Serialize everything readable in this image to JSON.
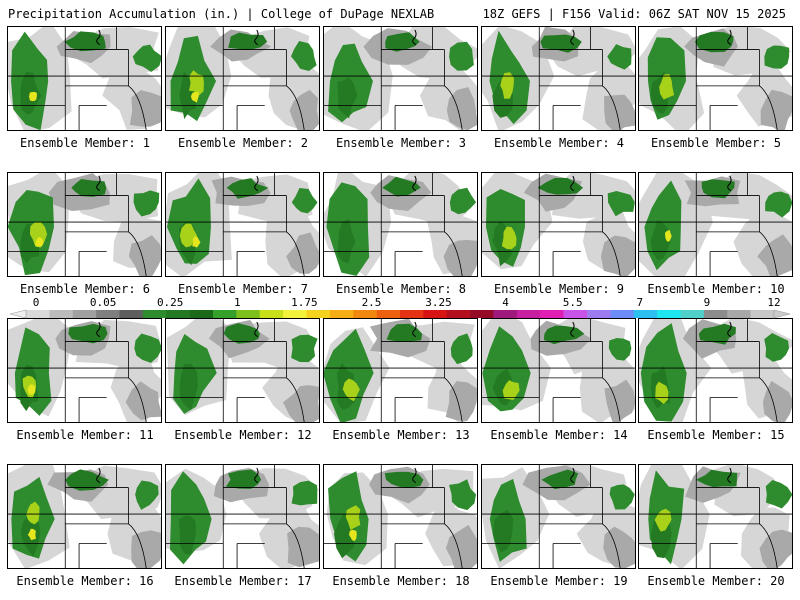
{
  "header": {
    "title_left": "Precipitation Accumulation (in.) | College of DuPage NEXLAB",
    "title_right": "18Z GEFS | F156 Valid: 06Z SAT NOV 15 2025"
  },
  "panels": [
    {
      "label": "Ensemble Member: 1"
    },
    {
      "label": "Ensemble Member: 2"
    },
    {
      "label": "Ensemble Member: 3"
    },
    {
      "label": "Ensemble Member: 4"
    },
    {
      "label": "Ensemble Member: 5"
    },
    {
      "label": "Ensemble Member: 6"
    },
    {
      "label": "Ensemble Member: 7"
    },
    {
      "label": "Ensemble Member: 8"
    },
    {
      "label": "Ensemble Member: 9"
    },
    {
      "label": "Ensemble Member: 10"
    },
    {
      "label": "Ensemble Member: 11"
    },
    {
      "label": "Ensemble Member: 12"
    },
    {
      "label": "Ensemble Member: 13"
    },
    {
      "label": "Ensemble Member: 14"
    },
    {
      "label": "Ensemble Member: 15"
    },
    {
      "label": "Ensemble Member: 16"
    },
    {
      "label": "Ensemble Member: 17"
    },
    {
      "label": "Ensemble Member: 18"
    },
    {
      "label": "Ensemble Member: 19"
    },
    {
      "label": "Ensemble Member: 20"
    }
  ],
  "colorbar": {
    "tick_labels": [
      "0",
      "0.05",
      "0.25",
      "1",
      "1.75",
      "2.5",
      "3.25",
      "4",
      "5.5",
      "7",
      "9",
      "12"
    ],
    "colors": [
      "#d9d9d9",
      "#bcbcbc",
      "#a0a0a0",
      "#7f7f7f",
      "#5e5e5e",
      "#2e8b2e",
      "#237a23",
      "#1a6a1a",
      "#35a12a",
      "#7ec11e",
      "#c7e01a",
      "#f2f23a",
      "#f5d21e",
      "#f5ae14",
      "#f0880f",
      "#ec6010",
      "#e63214",
      "#d61414",
      "#b40f1e",
      "#960a28",
      "#a0197d",
      "#c81ea0",
      "#e11eb4",
      "#c853e8",
      "#9e7cf0",
      "#6e8cf5",
      "#2cbff0",
      "#1ee6f0",
      "#50d0c8",
      "#8c8c8c",
      "#a8a8a8",
      "#c8c8c8"
    ]
  },
  "palette": {
    "light_gray": "#d6d6d6",
    "mid_gray": "#a9a9a9",
    "dark_gray": "#7f7f7f",
    "green_dark": "#237a23",
    "green": "#2e8b2e",
    "yellow_green": "#a8d21a",
    "yellow": "#e6e61e"
  }
}
